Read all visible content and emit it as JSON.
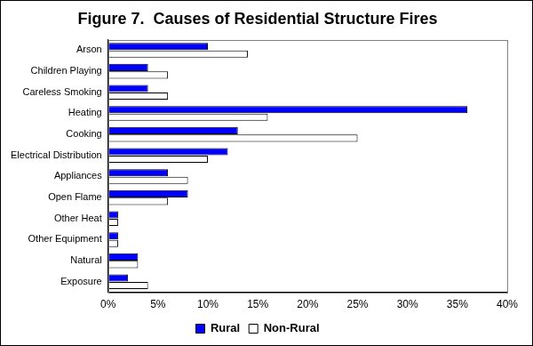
{
  "chart_data": {
    "type": "bar",
    "orientation": "horizontal",
    "title": "Figure 7.  Causes of Residential Structure Fires",
    "categories": [
      "Arson",
      "Children Playing",
      "Careless Smoking",
      "Heating",
      "Cooking",
      "Electrical Distribution",
      "Appliances",
      "Open Flame",
      "Other Heat",
      "Other Equipment",
      "Natural",
      "Exposure"
    ],
    "series": [
      {
        "name": "Rural",
        "color": "#0000ff",
        "values": [
          10,
          4,
          4,
          36,
          13,
          12,
          6,
          8,
          1,
          1,
          3,
          2
        ]
      },
      {
        "name": "Non-Rural",
        "color": "#ffffff",
        "values": [
          14,
          6,
          6,
          16,
          25,
          10,
          8,
          6,
          1,
          1,
          3,
          4
        ]
      }
    ],
    "xlim": [
      0,
      40
    ],
    "xticks": [
      {
        "value": 0,
        "label": "0%"
      },
      {
        "value": 5,
        "label": "5%"
      },
      {
        "value": 10,
        "label": "10%"
      },
      {
        "value": 15,
        "label": "15%"
      },
      {
        "value": 20,
        "label": "20%"
      },
      {
        "value": 25,
        "label": "25%"
      },
      {
        "value": 30,
        "label": "30%"
      },
      {
        "value": 35,
        "label": "35%"
      },
      {
        "value": 40,
        "label": "40%"
      }
    ],
    "grid": false,
    "legend": "bottom"
  }
}
